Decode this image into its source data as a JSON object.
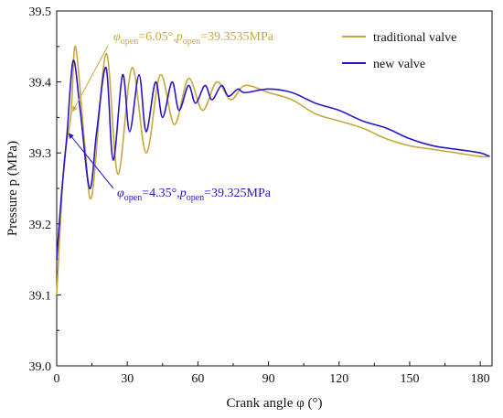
{
  "chart_data": {
    "type": "line",
    "xlabel": "Crank angle φ (°)",
    "ylabel": "Pressure p (MPa)",
    "xlim": [
      0,
      185
    ],
    "ylim": [
      39.0,
      39.5
    ],
    "xticks": [
      0,
      30,
      60,
      90,
      120,
      150,
      180
    ],
    "yticks": [
      39.0,
      39.1,
      39.2,
      39.3,
      39.4,
      39.5
    ],
    "xtick_labels": [
      "0",
      "30",
      "60",
      "90",
      "120",
      "150",
      "180"
    ],
    "ytick_labels": [
      "39.0",
      "39.1",
      "39.2",
      "39.3",
      "39.4",
      "39.5"
    ],
    "grid": false,
    "legend_position": "top-right",
    "series": [
      {
        "name": "traditional valve",
        "color": "#c8a83a",
        "x": [
          0,
          3,
          6.05,
          8,
          12,
          15,
          21,
          26,
          32,
          38,
          44,
          50,
          56,
          62,
          68,
          74,
          80,
          90,
          100,
          110,
          120,
          130,
          140,
          150,
          160,
          170,
          180,
          184
        ],
        "y": [
          39.1,
          39.28,
          39.3535,
          39.45,
          39.31,
          39.24,
          39.44,
          39.27,
          39.42,
          39.3,
          39.41,
          39.34,
          39.405,
          39.36,
          39.4,
          39.375,
          39.395,
          39.385,
          39.375,
          39.355,
          39.345,
          39.335,
          39.32,
          39.31,
          39.305,
          39.3,
          39.295,
          39.295
        ]
      },
      {
        "name": "new valve",
        "color": "#2a14c8",
        "x": [
          0,
          2,
          4.35,
          7,
          10,
          14,
          17,
          21,
          24,
          28,
          31,
          35,
          38,
          42,
          45,
          49,
          52,
          56,
          59,
          63,
          66,
          70,
          73,
          77,
          80,
          90,
          100,
          110,
          120,
          130,
          140,
          150,
          160,
          170,
          180,
          184
        ],
        "y": [
          39.15,
          39.24,
          39.325,
          39.43,
          39.36,
          39.25,
          39.33,
          39.42,
          39.29,
          39.41,
          39.33,
          39.41,
          39.33,
          39.4,
          39.35,
          39.4,
          39.36,
          39.395,
          39.37,
          39.395,
          39.375,
          39.395,
          39.38,
          39.39,
          39.385,
          39.39,
          39.385,
          39.37,
          39.36,
          39.345,
          39.335,
          39.32,
          39.31,
          39.305,
          39.3,
          39.295
        ]
      }
    ],
    "annotations": [
      {
        "series": 0,
        "color": "#c8a83a",
        "phi_sub": "open",
        "phi_val": "=6.05°,",
        "p_sub": "open",
        "p_val": "=39.3535MPa",
        "x": 6.05,
        "y": 39.3535
      },
      {
        "series": 1,
        "color": "#2a14c8",
        "phi_sub": "open",
        "phi_val": "=4.35°,",
        "p_sub": "open",
        "p_val": "=39.325MPa",
        "x": 4.35,
        "y": 39.325
      }
    ]
  }
}
